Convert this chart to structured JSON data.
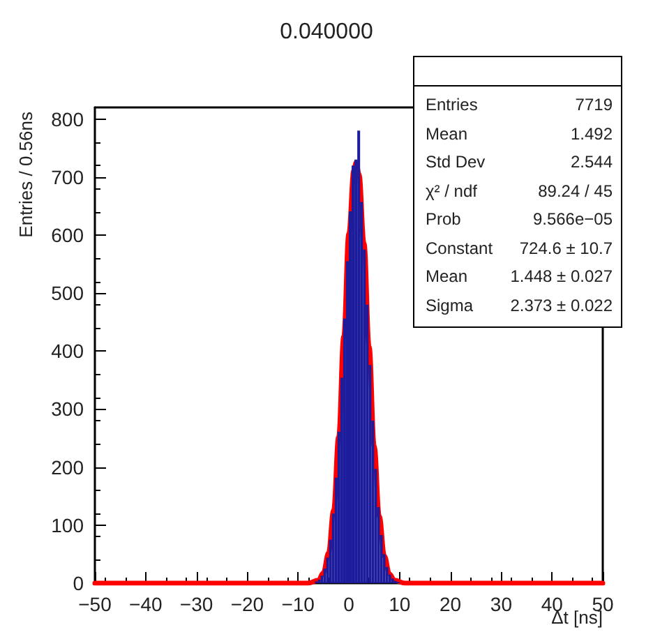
{
  "chart_data": {
    "type": "histogram",
    "title": "0.040000",
    "xlabel": "Δt [ns]",
    "ylabel": "Entries / 0.56ns",
    "bins": [
      -7.222,
      -6.667,
      -6.111,
      -5.556,
      -5,
      -4.444,
      -3.889,
      -3.333,
      -2.778,
      -2.222,
      -1.667,
      -1.111,
      -0.556,
      0,
      0.556,
      1.111,
      1.667,
      2.222,
      2.778,
      3.333,
      3.889,
      4.444,
      5,
      5.556,
      6.111,
      6.667,
      7.222,
      7.778,
      8.333,
      8.889,
      9.444,
      10,
      10.556
    ],
    "series": [
      {
        "color": "#1c1c9c",
        "values": [
          null,
          3,
          6,
          13,
          25,
          44,
          75,
          120,
          182,
          261,
          354,
          456,
          555,
          641,
          720,
          730,
          780,
          657,
          575,
          480,
          376,
          280,
          197,
          131,
          83,
          50,
          28,
          15,
          8,
          4,
          2,
          null
        ]
      },
      {
        "type": "line",
        "color": "#ff0000",
        "x": [
          -50,
          -10,
          -8,
          -6,
          -5,
          -4,
          -3,
          -2,
          -1,
          0,
          1,
          1.45,
          2,
          3,
          4,
          5,
          6,
          7,
          8,
          9,
          11,
          13,
          50
        ],
        "values": [
          0,
          0,
          0,
          5,
          18,
          52,
          125,
          252,
          425,
          602,
          712,
          725,
          705,
          585,
          407,
          236,
          115,
          47,
          16,
          5,
          0,
          0,
          0
        ]
      }
    ],
    "xlim": [
      -50,
      50
    ],
    "xticks": [
      -50,
      -40,
      -30,
      -20,
      -10,
      0,
      10,
      20,
      30,
      40,
      50
    ],
    "ylim": [
      0,
      820
    ],
    "yticks": [
      0,
      100,
      200,
      300,
      400,
      500,
      600,
      700,
      800
    ],
    "annotations": [
      "Entries",
      "7719",
      "Mean",
      "1.492",
      "Std Dev",
      "2.544",
      "χ² / ndf",
      "89.24 / 45",
      "Prob",
      "9.566e−05",
      "Constant",
      "724.6 ± 10.7",
      "Mean",
      "1.448 ± 0.027",
      "Sigma",
      "2.373 ± 0.022"
    ],
    "grid": false,
    "marker": "none",
    "line_style": "solid"
  }
}
